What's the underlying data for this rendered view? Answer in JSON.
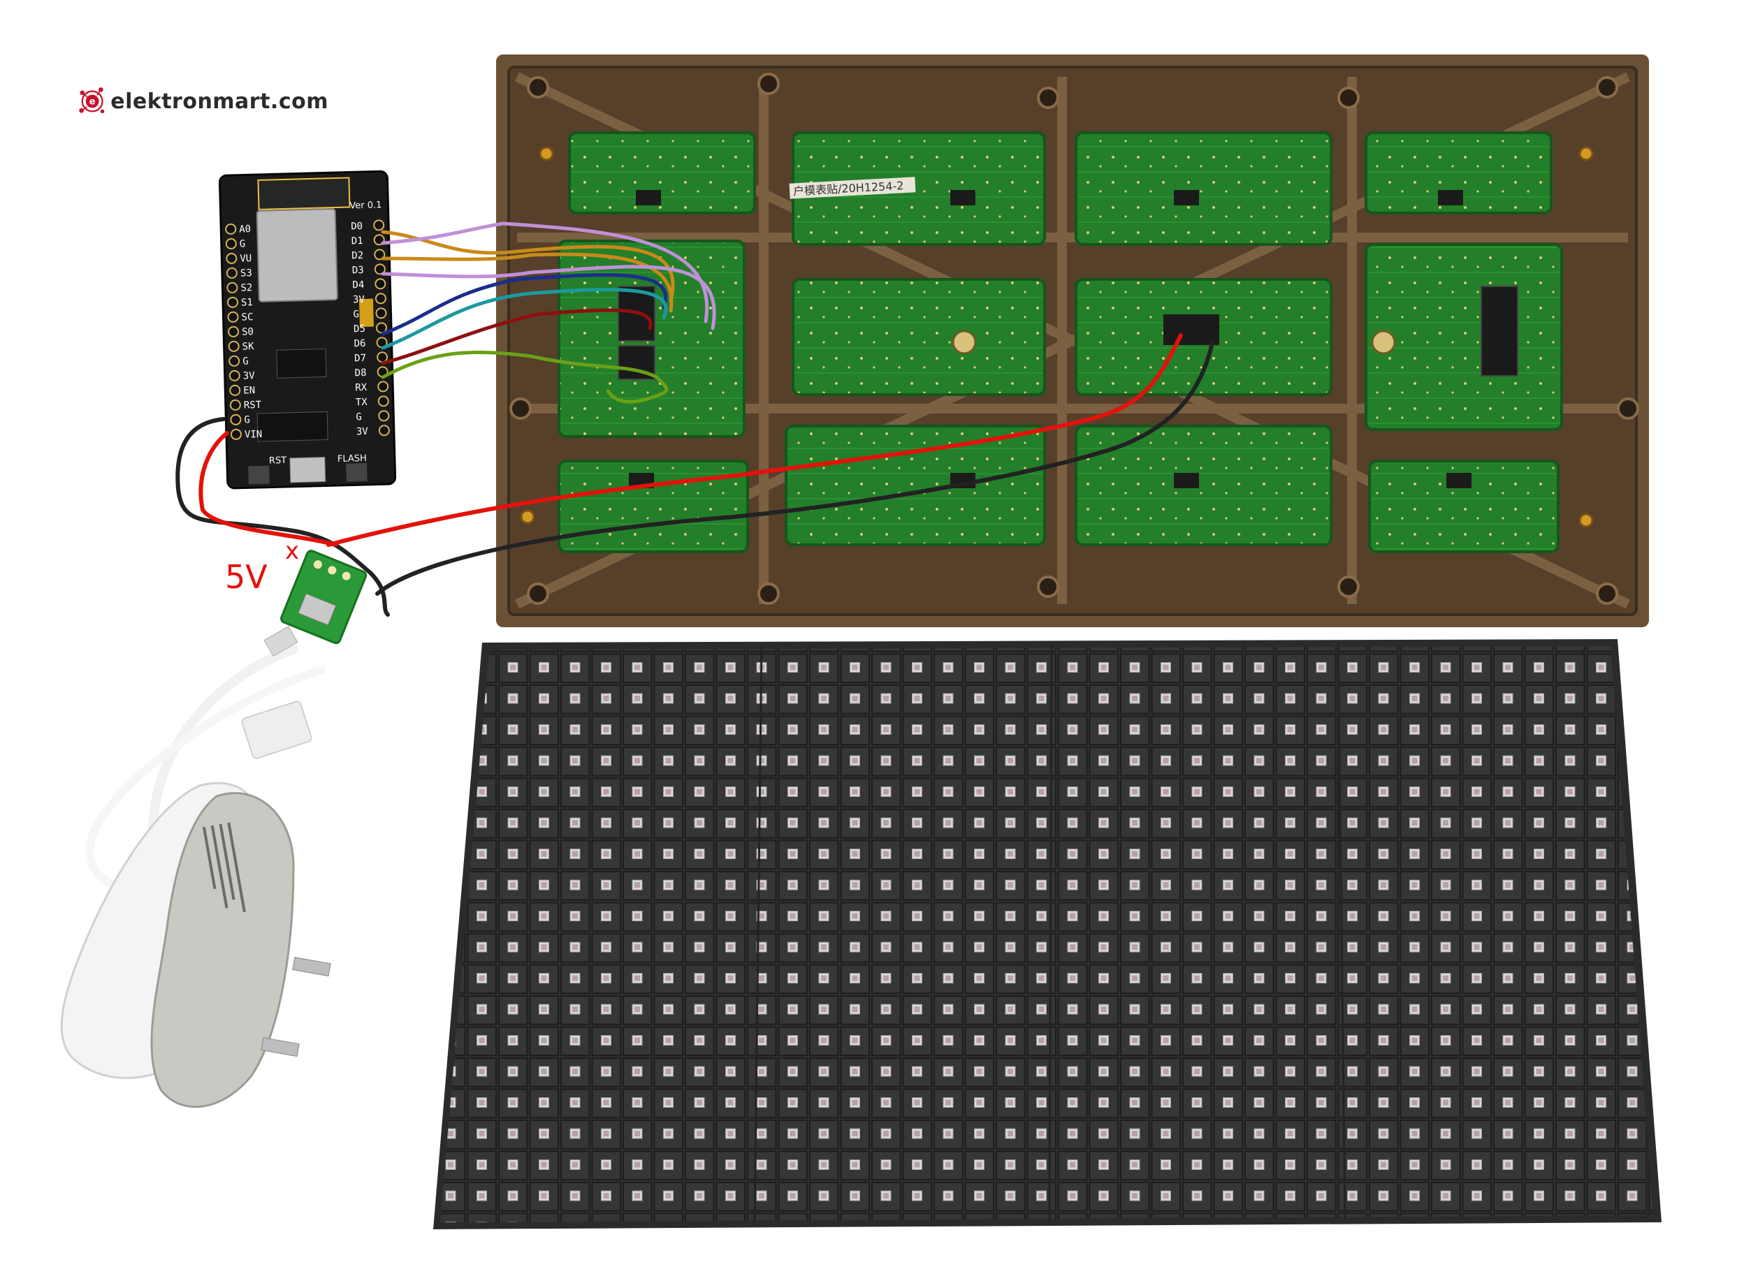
{
  "brand": {
    "name": "elektronmart.com",
    "logo_letter": "e",
    "accent": "#c8102e"
  },
  "nodemcu": {
    "version": "Ver 0.1",
    "left_pins": [
      "A0",
      "G",
      "VU",
      "S3",
      "S2",
      "S1",
      "SC",
      "S0",
      "SK",
      "G",
      "3V",
      "EN",
      "RST",
      "G",
      "VIN"
    ],
    "right_pins": [
      "D0",
      "D1",
      "D2",
      "D3",
      "D4",
      "3V",
      "G",
      "D5",
      "D6",
      "D7",
      "D8",
      "RX",
      "TX",
      "G",
      "3V"
    ],
    "buttons": [
      "RST",
      "FLASH"
    ]
  },
  "panel": {
    "sticker": "户模表贴/20H1254-2"
  },
  "power": {
    "label": "5V",
    "mark": "x"
  },
  "colors": {
    "wire_d0": "#c98a1a",
    "wire_d1": "#c090d8",
    "wire_d2": "#c98a1a",
    "wire_d3": "#c090d8",
    "wire_d5": "#1a2e8c",
    "wire_d6": "#1a9aa0",
    "wire_d7": "#8c1010",
    "wire_d8": "#6aa018",
    "wire_power": "#e3120b",
    "wire_ground": "#222222",
    "pcb_green": "#1f7d28",
    "frame_brown": "#6a5136",
    "led_panel": "#2e2e2e"
  }
}
